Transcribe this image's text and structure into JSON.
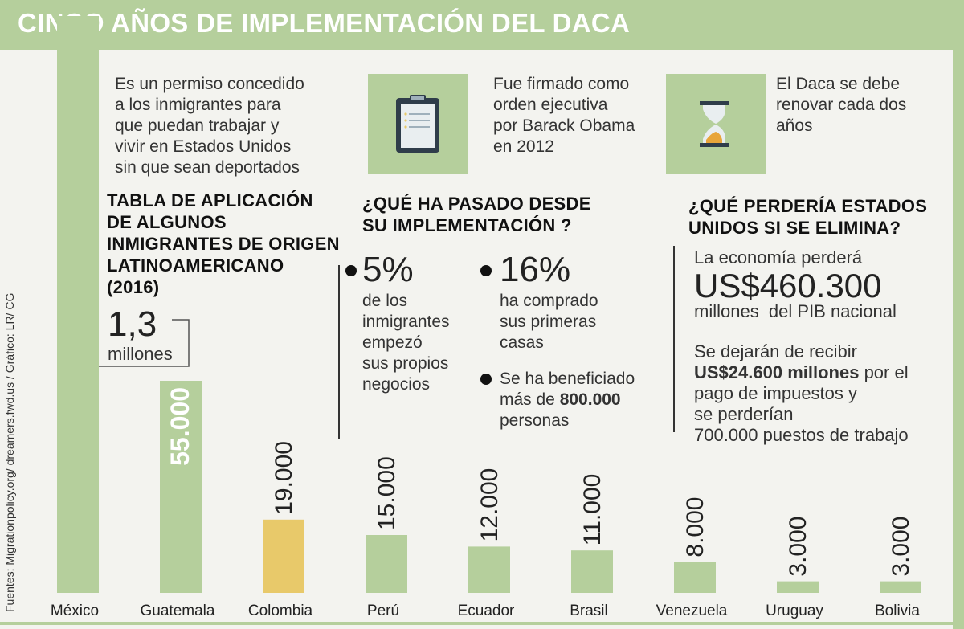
{
  "title": "CINCO AÑOS DE IMPLEMENTACIÓN DEL DACA",
  "source": "Fuentes: Migrationpolicy.org/ dreamers.fwd.us / Gráfico: LR/ CG",
  "intro": {
    "lines": [
      "Es un permiso concedido",
      "a los inmigrantes para",
      "que puedan trabajar y",
      "vivir en Estados Unidos",
      "sin que sean deportados"
    ]
  },
  "fact_signed": {
    "icon": "clipboard-icon",
    "lines": [
      "Fue firmado como",
      "orden ejecutiva",
      "por Barack Obama",
      "en 2012"
    ]
  },
  "fact_renew": {
    "icon": "hourglass-icon",
    "lines": [
      "El Daca se debe",
      "renovar cada dos",
      "años"
    ]
  },
  "table_heading": {
    "lines": [
      "TABLA DE APLICACIÓN",
      "DE ALGUNOS",
      "INMIGRANTES DE ORIGEN",
      "LATINOAMERICANO",
      "(2016)"
    ]
  },
  "mexico_callout": {
    "value": "1,3",
    "unit": "millones"
  },
  "since_heading": {
    "lines": [
      "¿QUÉ HA PASADO DESDE",
      "SU IMPLEMENTACIÓN ?"
    ]
  },
  "stat_5": {
    "value": "5%",
    "lines": [
      "de los",
      "inmigrantes",
      "empezó",
      "sus propios",
      "negocios"
    ]
  },
  "stat_16": {
    "value": "16%",
    "lines": [
      "ha comprado",
      "sus primeras",
      "casas"
    ]
  },
  "stat_benefit": {
    "line1": "Se ha beneficiado",
    "line2_pre": "más de ",
    "line2_bold": "800.000",
    "line3": "personas"
  },
  "lose_heading": {
    "lines": [
      "¿QUÉ PERDERÍA ESTADOS",
      "UNIDOS SI SE ELIMINA?"
    ]
  },
  "lose_economy": {
    "intro": "La economía perderá",
    "value": "US$460.300",
    "unit": "millones  del PIB nacional"
  },
  "lose_taxes": {
    "line1": "Se dejarán de recibir",
    "line2_bold": "US$24.600 millones",
    "line2_rest": " por el",
    "line3": "pago de impuestos y",
    "line4": "se perderían",
    "line5": "700.000 puestos de trabajo"
  },
  "colors": {
    "green": "#b5cf9c",
    "highlight": "#e8c96a",
    "dark": "#2f3d4a"
  },
  "chart_data": {
    "type": "bar",
    "title": "TABLA DE APLICACIÓN DE ALGUNOS INMIGRANTES DE ORIGEN LATINOAMERICANO (2016)",
    "categories": [
      "México",
      "Guatemala",
      "Colombia",
      "Perú",
      "Ecuador",
      "Brasil",
      "Venezuela",
      "Uruguay",
      "Bolivia"
    ],
    "values": [
      1300000,
      55000,
      19000,
      15000,
      12000,
      11000,
      8000,
      3000,
      3000
    ],
    "labels": [
      "1,3 millones",
      "55.000",
      "19.000",
      "15.000",
      "12.000",
      "11.000",
      "8.000",
      "3.000",
      "3.000"
    ],
    "highlight": "Colombia",
    "scale_note": "México bar is truncated; others scaled in data units",
    "ylim_visible": [
      0,
      62000
    ]
  }
}
